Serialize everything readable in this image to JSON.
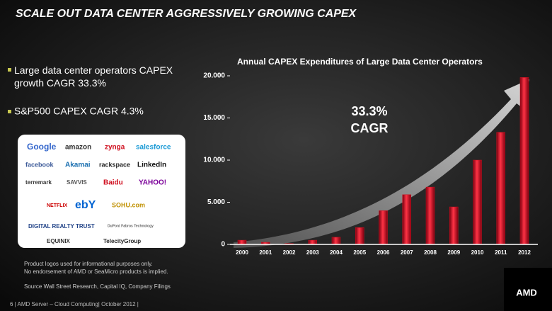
{
  "title": "SCALE OUT DATA CENTER AGGRESSIVELY GROWING CAPEX",
  "bullets": [
    "Large data center operators CAPEX growth CAGR 33.3%",
    "S&P500 CAPEX CAGR 4.3%"
  ],
  "logos": [
    "Google",
    "amazon",
    "zynga",
    "salesforce",
    "facebook",
    "Akamai",
    "rackspace",
    "LinkedIn",
    "terremark",
    "SAVVIS",
    "Baidu",
    "YAHOO!",
    "NETFLIX",
    "ebY",
    "SOHU.com",
    "DIGITAL REALTY TRUST",
    "DuPont Fabros Technology",
    "EQUINIX",
    "TelecityGroup"
  ],
  "disclaimer": [
    "Product logos used for informational purposes only.",
    "No endorsement of AMD or SeaMicro products is implied."
  ],
  "source": "Source  Wall Street Research, Capital IQ, Company Filings",
  "footer": "6  |  AMD Server – Cloud Computing|  October 2012  |",
  "brand": "AMD",
  "chart_data": {
    "type": "bar",
    "title": "Annual CAPEX Expenditures of Large Data Center Operators",
    "annotation": [
      "33.3%",
      "CAGR"
    ],
    "categories": [
      "2000",
      "2001",
      "2002",
      "2003",
      "2004",
      "2005",
      "2006",
      "2007",
      "2008",
      "2009",
      "2010",
      "2011",
      "2012"
    ],
    "values": [
      500,
      250,
      100,
      500,
      850,
      2000,
      4000,
      5900,
      6800,
      4450,
      10000,
      13300,
      19800
    ],
    "color": "#d0101e",
    "ylim": [
      0,
      20000
    ],
    "yticks": [
      0,
      {
        "value": 5000,
        "label": "5.000"
      },
      {
        "value": 10000,
        "label": "10.000"
      },
      {
        "value": 15000,
        "label": "15.000"
      },
      {
        "value": 20000,
        "label": "20.000"
      }
    ],
    "grid": false
  }
}
